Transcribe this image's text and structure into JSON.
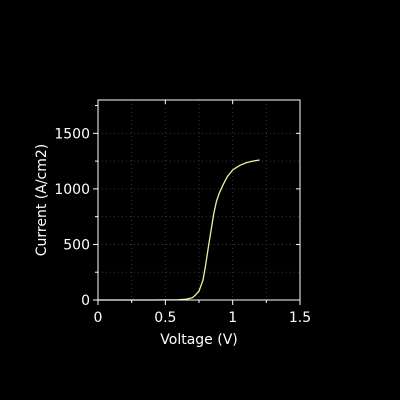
{
  "chart_data": {
    "type": "line",
    "title": "",
    "xlabel": "Voltage (V)",
    "ylabel": "Current (A/cm2)",
    "xlim": [
      0,
      1.5
    ],
    "ylim": [
      0,
      1800
    ],
    "xticks": [
      0,
      0.5,
      1,
      1.5
    ],
    "xtick_labels": [
      "0",
      "0.5",
      "1",
      "1.5"
    ],
    "yticks": [
      0,
      500,
      1000,
      1500
    ],
    "ytick_labels": [
      "0",
      "500",
      "1000",
      "1500"
    ],
    "grid": true,
    "legend": "none",
    "series": [
      {
        "color": "#f2f0a0",
        "points": [
          [
            0.0,
            0
          ],
          [
            0.2,
            0
          ],
          [
            0.4,
            0
          ],
          [
            0.6,
            2
          ],
          [
            0.65,
            6
          ],
          [
            0.7,
            20
          ],
          [
            0.72,
            40
          ],
          [
            0.75,
            80
          ],
          [
            0.78,
            180
          ],
          [
            0.8,
            320
          ],
          [
            0.82,
            480
          ],
          [
            0.84,
            630
          ],
          [
            0.86,
            780
          ],
          [
            0.88,
            890
          ],
          [
            0.9,
            960
          ],
          [
            0.93,
            1040
          ],
          [
            0.96,
            1110
          ],
          [
            1.0,
            1170
          ],
          [
            1.05,
            1210
          ],
          [
            1.1,
            1235
          ],
          [
            1.15,
            1250
          ],
          [
            1.2,
            1260
          ]
        ]
      }
    ]
  },
  "colors": {
    "background": "#000000",
    "axes": "#ffffff",
    "grid": "#3a3a3a",
    "line": "#f2f0a0"
  }
}
